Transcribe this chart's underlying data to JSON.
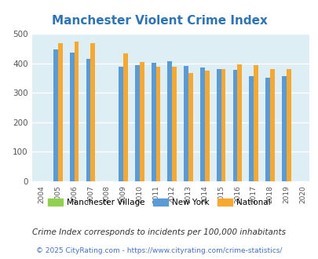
{
  "title": "Manchester Violent Crime Index",
  "years": [
    2004,
    2005,
    2006,
    2007,
    2008,
    2009,
    2010,
    2011,
    2012,
    2013,
    2014,
    2015,
    2016,
    2017,
    2018,
    2019,
    2020
  ],
  "data_years": [
    2005,
    2006,
    2007,
    2009,
    2010,
    2011,
    2012,
    2013,
    2014,
    2015,
    2016,
    2017,
    2018,
    2019
  ],
  "new_york": [
    447,
    436,
    415,
    388,
    394,
    401,
    406,
    391,
    385,
    381,
    377,
    357,
    350,
    357
  ],
  "national": [
    469,
    474,
    467,
    432,
    405,
    388,
    388,
    366,
    375,
    381,
    397,
    394,
    381,
    381
  ],
  "color_ny": "#5b9bd5",
  "color_national": "#f5a832",
  "color_manchester": "#92d050",
  "plot_bg": "#ddeef5",
  "ylim": [
    0,
    500
  ],
  "yticks": [
    0,
    100,
    200,
    300,
    400,
    500
  ],
  "title_color": "#2e74b5",
  "title_fontsize": 11,
  "footnote1": "Crime Index corresponds to incidents per 100,000 inhabitants",
  "footnote2": "© 2025 CityRating.com - https://www.cityrating.com/crime-statistics/",
  "legend_labels": [
    "Manchester Village",
    "New York",
    "National"
  ],
  "bar_width": 0.28
}
